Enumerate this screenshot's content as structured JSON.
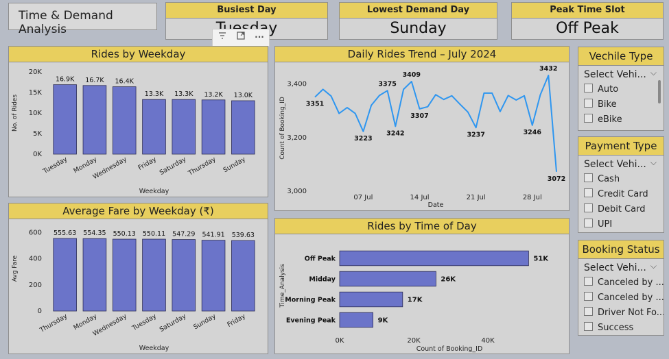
{
  "title": "Time & Demand Analysis",
  "kpis": [
    {
      "label": "Busiest Day",
      "value": "Tuesday"
    },
    {
      "label": "Lowest Demand Day",
      "value": "Sunday"
    },
    {
      "label": "Peak Time Slot",
      "value": "Off Peak"
    }
  ],
  "toolbar": {
    "filter_icon": "filter-icon",
    "focus_icon": "focus-mode-icon",
    "more_icon": "more-options-icon"
  },
  "slicers": [
    {
      "title": "Vechile Type",
      "placeholder": "Select Vehi...",
      "options": [
        "Auto",
        "Bike",
        "eBike"
      ]
    },
    {
      "title": "Payment Type",
      "placeholder": "Select Vehi...",
      "options": [
        "Cash",
        "Credit Card",
        "Debit Card",
        "UPI"
      ]
    },
    {
      "title": "Booking Status",
      "placeholder": "Select Vehi...",
      "options": [
        "Canceled by ...",
        "Canceled by ...",
        "Driver Not Fo...",
        "Success"
      ]
    }
  ],
  "colors": {
    "bar": "#6b74c9",
    "line": "#2e96f0",
    "header": "#e8cf5e"
  },
  "chart_data": [
    {
      "id": "rides_by_weekday",
      "type": "bar",
      "title": "Rides by Weekday",
      "xlabel": "Weekday",
      "ylabel": "No. of Rides",
      "categories": [
        "Tuesday",
        "Monday",
        "Wednesday",
        "Friday",
        "Saturday",
        "Thursday",
        "Sunday"
      ],
      "values": [
        16900,
        16700,
        16400,
        13300,
        13300,
        13200,
        13000
      ],
      "value_labels": [
        "16.9K",
        "16.7K",
        "16.4K",
        "13.3K",
        "13.3K",
        "13.2K",
        "13.0K"
      ],
      "yticks": [
        "0K",
        "5K",
        "10K",
        "15K",
        "20K"
      ],
      "ytick_values": [
        0,
        5000,
        10000,
        15000,
        20000
      ],
      "ylim": [
        0,
        20000
      ]
    },
    {
      "id": "avg_fare_by_weekday",
      "type": "bar",
      "title": "Average Fare by Weekday (₹)",
      "xlabel": "Weekday",
      "ylabel": "Avg Fare",
      "categories": [
        "Thursday",
        "Monday",
        "Wednesday",
        "Tuesday",
        "Saturday",
        "Sunday",
        "Friday"
      ],
      "values": [
        555.63,
        554.35,
        550.13,
        550.11,
        547.29,
        541.91,
        539.63
      ],
      "value_labels": [
        "555.63",
        "554.35",
        "550.13",
        "550.11",
        "547.29",
        "541.91",
        "539.63"
      ],
      "yticks": [
        "0",
        "200",
        "400",
        "600"
      ],
      "ytick_values": [
        0,
        200,
        400,
        600
      ],
      "ylim": [
        0,
        650
      ]
    },
    {
      "id": "daily_rides_trend",
      "type": "line",
      "title": "Daily Rides Trend – July 2024",
      "xlabel": "Date",
      "ylabel": "Count of Booking_ID",
      "x": [
        "2024-07-01",
        "2024-07-02",
        "2024-07-03",
        "2024-07-04",
        "2024-07-05",
        "2024-07-06",
        "2024-07-07",
        "2024-07-08",
        "2024-07-09",
        "2024-07-10",
        "2024-07-11",
        "2024-07-12",
        "2024-07-13",
        "2024-07-14",
        "2024-07-15",
        "2024-07-16",
        "2024-07-17",
        "2024-07-18",
        "2024-07-19",
        "2024-07-20",
        "2024-07-21",
        "2024-07-22",
        "2024-07-23",
        "2024-07-24",
        "2024-07-25",
        "2024-07-26",
        "2024-07-27",
        "2024-07-28",
        "2024-07-29",
        "2024-07-30",
        "2024-07-31"
      ],
      "y": [
        3351,
        3380,
        3355,
        3290,
        3312,
        3290,
        3223,
        3320,
        3357,
        3375,
        3242,
        3380,
        3409,
        3307,
        3315,
        3360,
        3342,
        3356,
        3325,
        3295,
        3237,
        3366,
        3366,
        3297,
        3357,
        3340,
        3356,
        3246,
        3360,
        3432,
        3072
      ],
      "point_labels": [
        {
          "index": 0,
          "text": "3351"
        },
        {
          "index": 6,
          "text": "3223"
        },
        {
          "index": 9,
          "text": "3375"
        },
        {
          "index": 10,
          "text": "3242"
        },
        {
          "index": 12,
          "text": "3409"
        },
        {
          "index": 13,
          "text": "3307"
        },
        {
          "index": 20,
          "text": "3237"
        },
        {
          "index": 27,
          "text": "3246"
        },
        {
          "index": 29,
          "text": "3432"
        },
        {
          "index": 30,
          "text": "3072"
        }
      ],
      "yticks": [
        "3,000",
        "3,200",
        "3,400"
      ],
      "ytick_values": [
        3000,
        3200,
        3400
      ],
      "xticks": [
        "07 Jul",
        "14 Jul",
        "21 Jul",
        "28 Jul"
      ],
      "xtick_values": [
        "2024-07-07",
        "2024-07-14",
        "2024-07-21",
        "2024-07-28"
      ],
      "ylim": [
        3000,
        3450
      ]
    },
    {
      "id": "rides_by_time_of_day",
      "type": "bar",
      "orientation": "horizontal",
      "title": "Rides by Time of Day",
      "xlabel": "Count of Booking_ID",
      "ylabel": "Time_Analysis",
      "categories": [
        "Off Peak",
        "Midday",
        "Morning Peak",
        "Evening Peak"
      ],
      "values": [
        51000,
        26000,
        17000,
        9000
      ],
      "value_labels": [
        "51K",
        "26K",
        "17K",
        "9K"
      ],
      "xticks": [
        "0K",
        "20K",
        "40K"
      ],
      "xtick_values": [
        0,
        20000,
        40000
      ],
      "xlim": [
        0,
        60000
      ]
    }
  ]
}
